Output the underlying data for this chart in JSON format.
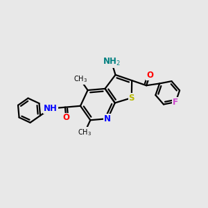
{
  "bg_color": "#e8e8e8",
  "line_color": "#000000",
  "bond_width": 1.6,
  "figsize": [
    3.0,
    3.0
  ],
  "dpi": 100,
  "atom_colors": {
    "N": "#0000ff",
    "O": "#ff0000",
    "S": "#b8b800",
    "F": "#cc44cc",
    "NH_amino": "#008080",
    "C": "#000000"
  },
  "font_size": 8.0,
  "font_size_atom": 8.5,
  "font_size_small": 7.0
}
